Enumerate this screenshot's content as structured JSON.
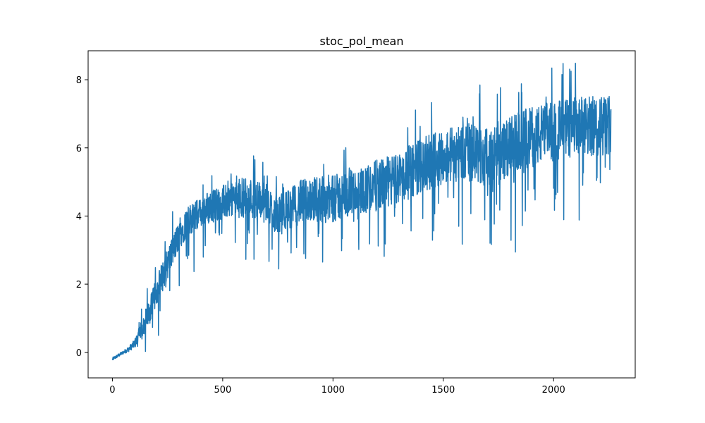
{
  "chart_data": {
    "type": "line",
    "title": "stoc_pol_mean",
    "xlabel": "",
    "ylabel": "",
    "xlim": [
      -110,
      2370
    ],
    "ylim": [
      -0.75,
      8.85
    ],
    "xticks": [
      0,
      500,
      1000,
      1500,
      2000
    ],
    "yticks": [
      0,
      2,
      4,
      6,
      8
    ],
    "grid": false,
    "legend": "none",
    "color": "#1f77b4",
    "series": [
      {
        "x": [
          0,
          25,
          50,
          75,
          100,
          125,
          150,
          175,
          200,
          225,
          250,
          275,
          300,
          325,
          350,
          375,
          400,
          425,
          450,
          475,
          500,
          550,
          600,
          650,
          700,
          750,
          800,
          850,
          900,
          950,
          1000,
          1050,
          1100,
          1150,
          1200,
          1250,
          1300,
          1350,
          1400,
          1450,
          1500,
          1550,
          1600,
          1650,
          1700,
          1750,
          1800,
          1850,
          1900,
          1950,
          2000,
          2050,
          2100,
          2150,
          2200,
          2250,
          2260
        ],
        "values": [
          -0.2,
          -0.1,
          0.0,
          0.1,
          0.25,
          0.5,
          0.9,
          1.3,
          1.8,
          2.2,
          2.6,
          3.0,
          3.4,
          3.7,
          3.9,
          4.0,
          4.1,
          4.2,
          4.3,
          4.35,
          4.4,
          4.5,
          4.55,
          4.5,
          4.35,
          4.0,
          4.2,
          4.4,
          4.5,
          4.5,
          4.5,
          4.6,
          4.7,
          4.8,
          4.9,
          5.0,
          5.1,
          5.3,
          5.5,
          5.6,
          5.75,
          5.85,
          5.9,
          5.8,
          5.7,
          5.8,
          6.0,
          6.2,
          6.3,
          6.4,
          6.5,
          6.55,
          6.6,
          6.6,
          6.65,
          6.7,
          6.8
        ],
        "noise_amp": [
          0.05,
          0.05,
          0.05,
          0.08,
          0.12,
          0.3,
          0.4,
          0.4,
          0.4,
          0.45,
          0.45,
          0.45,
          0.45,
          0.45,
          0.45,
          0.45,
          0.45,
          0.5,
          0.5,
          0.5,
          0.5,
          0.55,
          0.6,
          0.6,
          0.6,
          0.6,
          0.6,
          0.65,
          0.65,
          0.7,
          0.7,
          0.7,
          0.7,
          0.7,
          0.75,
          0.75,
          0.75,
          0.8,
          0.8,
          0.8,
          0.8,
          0.85,
          0.85,
          0.85,
          0.85,
          0.85,
          0.9,
          0.9,
          0.9,
          0.9,
          0.9,
          0.9,
          0.9,
          0.9,
          0.9,
          0.9,
          0.9
        ]
      }
    ],
    "n_points": 2261
  }
}
